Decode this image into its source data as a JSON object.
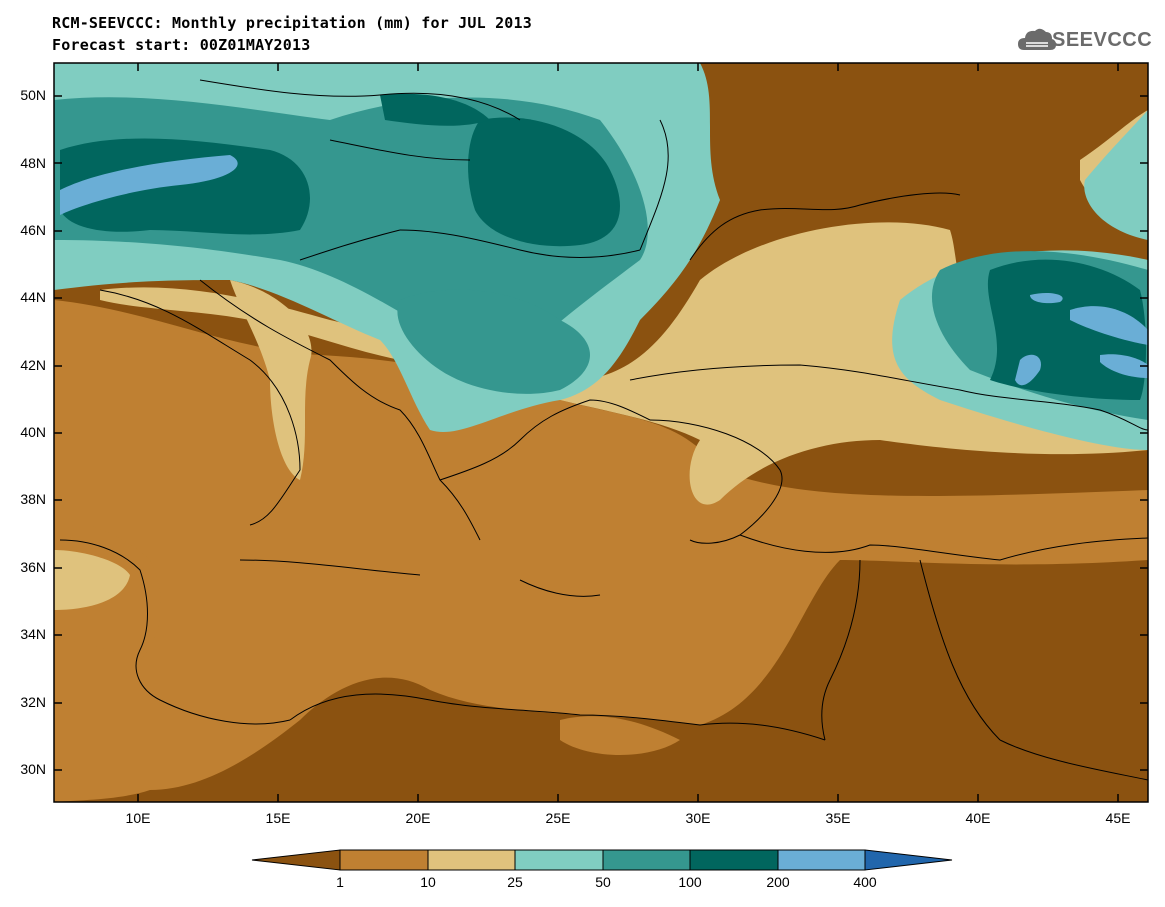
{
  "title": {
    "line1": "RCM-SEEVCCC: Monthly precipitation (mm) for JUL 2013",
    "line2": "Forecast start: 00Z01MAY2013"
  },
  "logo": {
    "text": "SEEVCCC",
    "icon": "cloud-icon"
  },
  "map": {
    "lon_range": [
      7,
      46
    ],
    "lat_range": [
      29,
      51
    ],
    "lat_ticks": [
      "50N",
      "48N",
      "46N",
      "44N",
      "42N",
      "40N",
      "38N",
      "36N",
      "34N",
      "32N",
      "30N"
    ],
    "lon_ticks": [
      "10E",
      "15E",
      "20E",
      "25E",
      "30E",
      "35E",
      "40E",
      "45E"
    ],
    "variable": "Monthly precipitation (mm)"
  },
  "colorbar": {
    "labels": [
      "1",
      "10",
      "25",
      "50",
      "100",
      "200",
      "400"
    ],
    "colors": [
      "#8b5210",
      "#bf8032",
      "#dfc27d",
      "#80cdc1",
      "#35978f",
      "#01665e",
      "#6aaed6",
      "#2166ac"
    ]
  }
}
